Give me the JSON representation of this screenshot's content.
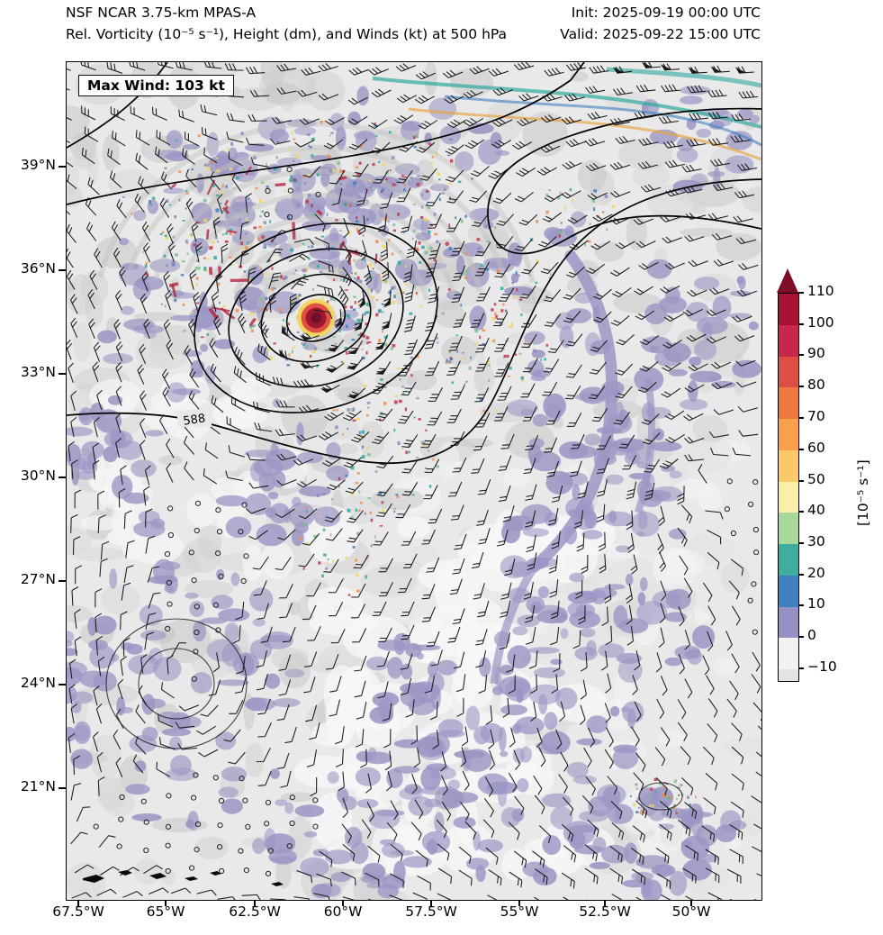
{
  "header": {
    "line1": "NSF NCAR 3.75-km MPAS-A",
    "line2": "Rel. Vorticity (10⁻⁵ s⁻¹), Height (dm), and Winds (kt) at 500 hPa",
    "init_label": "Init: 2025-09-19 00:00 UTC",
    "valid_label": "Valid: 2025-09-22 15:00 UTC"
  },
  "map": {
    "max_wind_label": "Max Wind: 103 kt",
    "height_contour_label": "588",
    "lat_ticks": [
      "39°N",
      "36°N",
      "33°N",
      "30°N",
      "27°N",
      "24°N",
      "21°N"
    ],
    "lon_ticks": [
      "67.5°W",
      "65°W",
      "62.5°W",
      "60°W",
      "57.5°W",
      "55°W",
      "52.5°W",
      "50°W"
    ]
  },
  "colorbar": {
    "unit_label": "[10⁻⁵ s⁻¹]",
    "ticks": [
      "110",
      "100",
      "90",
      "80",
      "70",
      "60",
      "50",
      "40",
      "30",
      "20",
      "10",
      "0",
      "−10"
    ],
    "arrow_color": "#7e0c27",
    "segments": [
      {
        "range": "100–110",
        "color": "#a81334"
      },
      {
        "range": "90–100",
        "color": "#c5284a"
      },
      {
        "range": "80–90",
        "color": "#dd4e44"
      },
      {
        "range": "70–80",
        "color": "#ef7942"
      },
      {
        "range": "60–70",
        "color": "#f9a04b"
      },
      {
        "range": "50–60",
        "color": "#fbc86a"
      },
      {
        "range": "40–50",
        "color": "#f8f0a8"
      },
      {
        "range": "30–40",
        "color": "#a8d89a"
      },
      {
        "range": "20–30",
        "color": "#3fae9f"
      },
      {
        "range": "10–20",
        "color": "#4281c1"
      },
      {
        "range": "0–10",
        "color": "#9691c4"
      },
      {
        "range": "−10–0",
        "color": "#f2f2f2"
      },
      {
        "range": "<−10",
        "color": "#e3e3e3"
      }
    ]
  }
}
